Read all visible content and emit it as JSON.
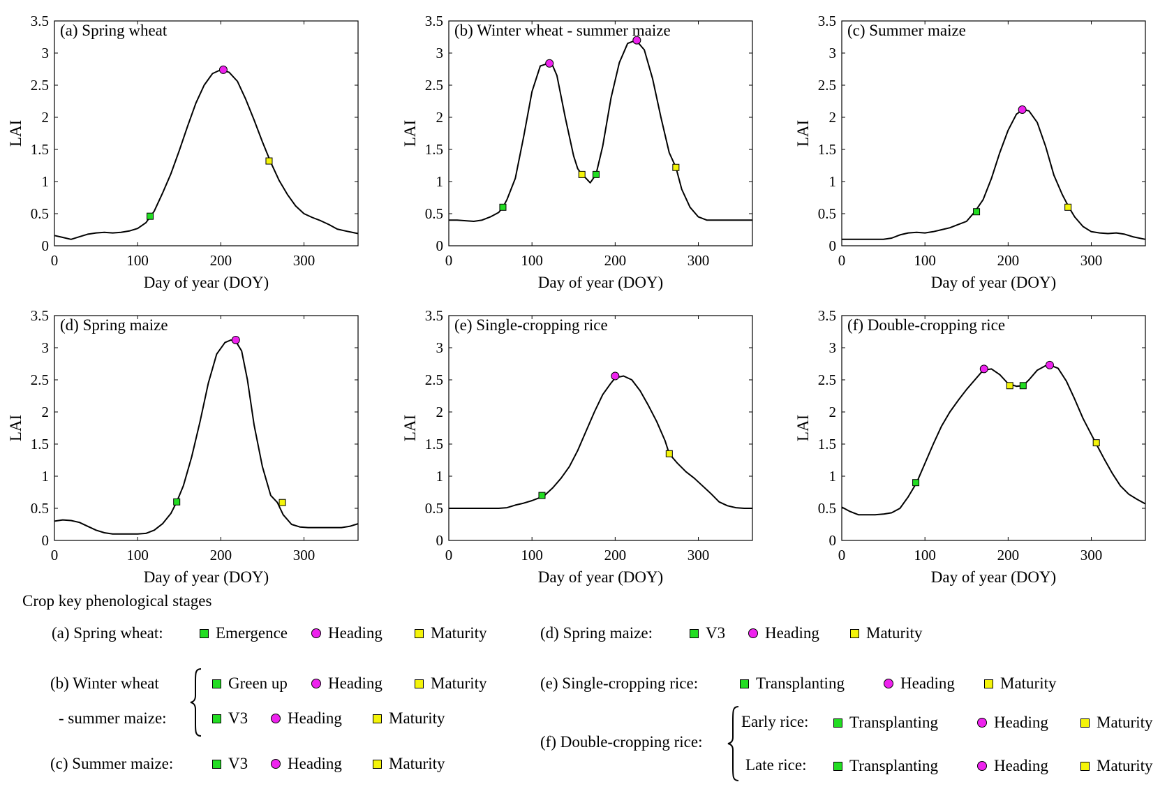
{
  "colors": {
    "emergence": "#22dd22",
    "heading": "#ee22ee",
    "maturity": "#f4f40a",
    "line": "#000000"
  },
  "chart_data": [
    {
      "type": "line",
      "panel_title": "(a) Spring wheat",
      "xlabel": "Day of year (DOY)",
      "ylabel": "LAI",
      "xlim": [
        0,
        365
      ],
      "ylim": [
        0,
        3.5
      ],
      "xticks": [
        "0",
        "100",
        "200",
        "300"
      ],
      "yticks": [
        "0",
        "0.5",
        "1",
        "1.5",
        "2",
        "2.5",
        "3",
        "3.5"
      ],
      "x": [
        0,
        10,
        20,
        30,
        40,
        50,
        60,
        70,
        80,
        90,
        100,
        110,
        120,
        130,
        140,
        150,
        160,
        170,
        180,
        190,
        200,
        210,
        220,
        230,
        240,
        250,
        260,
        270,
        280,
        290,
        300,
        310,
        320,
        330,
        340,
        350,
        365
      ],
      "y": [
        0.16,
        0.13,
        0.1,
        0.14,
        0.18,
        0.2,
        0.21,
        0.2,
        0.21,
        0.23,
        0.27,
        0.36,
        0.54,
        0.82,
        1.12,
        1.48,
        1.86,
        2.22,
        2.5,
        2.68,
        2.74,
        2.7,
        2.56,
        2.28,
        1.96,
        1.62,
        1.3,
        1.02,
        0.8,
        0.62,
        0.5,
        0.44,
        0.39,
        0.33,
        0.26,
        0.23,
        0.19
      ],
      "markers": [
        {
          "stage": "Emergence",
          "x": 115,
          "y": 0.46,
          "shape": "square"
        },
        {
          "stage": "Heading",
          "x": 203,
          "y": 2.74,
          "shape": "circle"
        },
        {
          "stage": "Maturity",
          "x": 258,
          "y": 1.32,
          "shape": "square"
        }
      ]
    },
    {
      "type": "line",
      "panel_title": "(b) Winter  wheat - summer maize",
      "xlabel": "Day of year (DOY)",
      "ylabel": "LAI",
      "xlim": [
        0,
        365
      ],
      "ylim": [
        0,
        3.5
      ],
      "xticks": [
        "0",
        "100",
        "200",
        "300"
      ],
      "yticks": [
        "0",
        "0.5",
        "1",
        "1.5",
        "2",
        "2.5",
        "3",
        "3.5"
      ],
      "x": [
        0,
        10,
        20,
        30,
        40,
        50,
        60,
        65,
        70,
        80,
        90,
        100,
        110,
        120,
        125,
        130,
        140,
        150,
        155,
        160,
        165,
        170,
        177,
        185,
        195,
        205,
        215,
        225,
        235,
        245,
        255,
        265,
        273,
        280,
        290,
        300,
        310,
        320,
        330,
        340,
        350,
        365
      ],
      "y": [
        0.4,
        0.4,
        0.39,
        0.38,
        0.4,
        0.45,
        0.52,
        0.6,
        0.72,
        1.05,
        1.7,
        2.4,
        2.8,
        2.84,
        2.8,
        2.65,
        2.0,
        1.4,
        1.2,
        1.11,
        1.05,
        0.98,
        1.11,
        1.55,
        2.3,
        2.85,
        3.15,
        3.2,
        3.05,
        2.6,
        2.0,
        1.45,
        1.22,
        0.88,
        0.6,
        0.45,
        0.4,
        0.4,
        0.4,
        0.4,
        0.4,
        0.4
      ],
      "markers": [
        {
          "stage": "Green up",
          "x": 65,
          "y": 0.6,
          "shape": "square"
        },
        {
          "stage": "Heading",
          "x": 121,
          "y": 2.84,
          "shape": "circle"
        },
        {
          "stage": "Maturity",
          "x": 160,
          "y": 1.11,
          "shape": "square"
        },
        {
          "stage": "V3",
          "x": 177,
          "y": 1.11,
          "shape": "square"
        },
        {
          "stage": "Heading",
          "x": 226,
          "y": 3.2,
          "shape": "circle"
        },
        {
          "stage": "Maturity",
          "x": 273,
          "y": 1.22,
          "shape": "square"
        }
      ]
    },
    {
      "type": "line",
      "panel_title": "(c) Summer maize",
      "xlabel": "Day of year (DOY)",
      "ylabel": "LAI",
      "xlim": [
        0,
        365
      ],
      "ylim": [
        0,
        3.5
      ],
      "xticks": [
        "0",
        "100",
        "200",
        "300"
      ],
      "yticks": [
        "0",
        "0.5",
        "1",
        "1.5",
        "2",
        "2.5",
        "3",
        "3.5"
      ],
      "x": [
        0,
        10,
        20,
        30,
        40,
        50,
        60,
        70,
        80,
        90,
        100,
        110,
        120,
        130,
        140,
        150,
        160,
        170,
        180,
        190,
        200,
        210,
        218,
        225,
        235,
        245,
        255,
        265,
        273,
        280,
        290,
        300,
        310,
        320,
        330,
        340,
        350,
        365
      ],
      "y": [
        0.1,
        0.1,
        0.1,
        0.1,
        0.1,
        0.1,
        0.12,
        0.17,
        0.2,
        0.21,
        0.2,
        0.22,
        0.25,
        0.28,
        0.33,
        0.38,
        0.53,
        0.72,
        1.05,
        1.45,
        1.8,
        2.05,
        2.12,
        2.1,
        1.92,
        1.55,
        1.1,
        0.8,
        0.6,
        0.45,
        0.3,
        0.22,
        0.2,
        0.19,
        0.2,
        0.18,
        0.14,
        0.1
      ],
      "markers": [
        {
          "stage": "V3",
          "x": 162,
          "y": 0.53,
          "shape": "square"
        },
        {
          "stage": "Heading",
          "x": 217,
          "y": 2.12,
          "shape": "circle"
        },
        {
          "stage": "Maturity",
          "x": 272,
          "y": 0.6,
          "shape": "square"
        }
      ]
    },
    {
      "type": "line",
      "panel_title": "(d) Spring maize",
      "xlabel": "Day of year (DOY)",
      "ylabel": "LAI",
      "xlim": [
        0,
        365
      ],
      "ylim": [
        0,
        3.5
      ],
      "xticks": [
        "0",
        "100",
        "200",
        "300"
      ],
      "yticks": [
        "0",
        "0.5",
        "1",
        "1.5",
        "2",
        "2.5",
        "3",
        "3.5"
      ],
      "x": [
        0,
        10,
        20,
        30,
        40,
        50,
        60,
        70,
        80,
        90,
        100,
        110,
        120,
        130,
        140,
        147,
        155,
        165,
        175,
        185,
        195,
        205,
        212,
        218,
        225,
        232,
        240,
        250,
        260,
        268,
        275,
        285,
        295,
        305,
        315,
        325,
        335,
        345,
        355,
        365
      ],
      "y": [
        0.3,
        0.32,
        0.31,
        0.28,
        0.22,
        0.16,
        0.12,
        0.1,
        0.1,
        0.1,
        0.1,
        0.11,
        0.16,
        0.26,
        0.42,
        0.6,
        0.85,
        1.3,
        1.85,
        2.45,
        2.9,
        3.08,
        3.12,
        3.1,
        2.95,
        2.5,
        1.8,
        1.15,
        0.7,
        0.59,
        0.4,
        0.25,
        0.21,
        0.2,
        0.2,
        0.2,
        0.2,
        0.2,
        0.22,
        0.26
      ],
      "markers": [
        {
          "stage": "V3",
          "x": 147,
          "y": 0.6,
          "shape": "square"
        },
        {
          "stage": "Heading",
          "x": 218,
          "y": 3.12,
          "shape": "circle"
        },
        {
          "stage": "Maturity",
          "x": 274,
          "y": 0.59,
          "shape": "square"
        }
      ]
    },
    {
      "type": "line",
      "panel_title": "(e) Single-cropping rice",
      "xlabel": "Day of year (DOY)",
      "ylabel": "LAI",
      "xlim": [
        0,
        365
      ],
      "ylim": [
        0,
        3.5
      ],
      "xticks": [
        "0",
        "100",
        "200",
        "300"
      ],
      "yticks": [
        "0",
        "0.5",
        "1",
        "1.5",
        "2",
        "2.5",
        "3",
        "3.5"
      ],
      "x": [
        0,
        10,
        20,
        30,
        40,
        50,
        60,
        70,
        80,
        90,
        100,
        110,
        115,
        125,
        135,
        145,
        155,
        165,
        175,
        185,
        195,
        200,
        210,
        220,
        230,
        240,
        250,
        260,
        265,
        275,
        285,
        295,
        305,
        315,
        325,
        335,
        345,
        355,
        365
      ],
      "y": [
        0.5,
        0.5,
        0.5,
        0.5,
        0.5,
        0.5,
        0.5,
        0.51,
        0.55,
        0.58,
        0.62,
        0.67,
        0.7,
        0.82,
        0.97,
        1.15,
        1.4,
        1.7,
        2.0,
        2.27,
        2.45,
        2.53,
        2.56,
        2.5,
        2.33,
        2.1,
        1.85,
        1.55,
        1.35,
        1.2,
        1.07,
        0.97,
        0.85,
        0.73,
        0.6,
        0.54,
        0.51,
        0.5,
        0.5
      ],
      "markers": [
        {
          "stage": "Transplanting",
          "x": 112,
          "y": 0.7,
          "shape": "square"
        },
        {
          "stage": "Heading",
          "x": 200,
          "y": 2.56,
          "shape": "circle"
        },
        {
          "stage": "Maturity",
          "x": 265,
          "y": 1.35,
          "shape": "square"
        }
      ]
    },
    {
      "type": "line",
      "panel_title": "(f) Double-cropping rice",
      "xlabel": "Day of year (DOY)",
      "ylabel": "LAI",
      "xlim": [
        0,
        365
      ],
      "ylim": [
        0,
        3.5
      ],
      "xticks": [
        "0",
        "100",
        "200",
        "300"
      ],
      "yticks": [
        "0",
        "0.5",
        "1",
        "1.5",
        "2",
        "2.5",
        "3",
        "3.5"
      ],
      "x": [
        0,
        10,
        20,
        30,
        40,
        50,
        60,
        70,
        80,
        90,
        100,
        110,
        120,
        130,
        140,
        150,
        160,
        170,
        180,
        190,
        200,
        210,
        218,
        225,
        235,
        245,
        250,
        260,
        270,
        280,
        290,
        300,
        306,
        315,
        325,
        335,
        345,
        355,
        365
      ],
      "y": [
        0.52,
        0.45,
        0.4,
        0.4,
        0.4,
        0.41,
        0.43,
        0.5,
        0.68,
        0.9,
        1.2,
        1.5,
        1.78,
        2.0,
        2.18,
        2.35,
        2.5,
        2.65,
        2.67,
        2.58,
        2.44,
        2.4,
        2.41,
        2.5,
        2.65,
        2.72,
        2.73,
        2.68,
        2.48,
        2.2,
        1.9,
        1.65,
        1.5,
        1.28,
        1.05,
        0.85,
        0.72,
        0.64,
        0.57
      ],
      "markers": [
        {
          "stage": "Transplanting",
          "x": 89,
          "y": 0.9,
          "shape": "square"
        },
        {
          "stage": "Heading",
          "x": 171,
          "y": 2.67,
          "shape": "circle"
        },
        {
          "stage": "Maturity",
          "x": 202,
          "y": 2.41,
          "shape": "square"
        },
        {
          "stage": "Transplanting",
          "x": 218,
          "y": 2.41,
          "shape": "square"
        },
        {
          "stage": "Heading",
          "x": 250,
          "y": 2.73,
          "shape": "circle"
        },
        {
          "stage": "Maturity",
          "x": 306,
          "y": 1.52,
          "shape": "square"
        }
      ]
    }
  ],
  "legend": {
    "title": "Crop key phenological stages",
    "spring_wheat": {
      "label": "(a) Spring wheat:",
      "s1": "Emergence",
      "s2": "Heading",
      "s3": "Maturity"
    },
    "winter_wheat": {
      "label": "(b) Winter wheat",
      "s1": "Green up",
      "s2": "Heading",
      "s3": "Maturity"
    },
    "summer_maize_b": {
      "label": "-  summer maize:",
      "s1": "V3",
      "s2": "Heading",
      "s3": "Maturity"
    },
    "summer_maize": {
      "label": "(c) Summer maize:",
      "s1": "V3",
      "s2": "Heading",
      "s3": "Maturity"
    },
    "spring_maize": {
      "label": "(d) Spring maize:",
      "s1": "V3",
      "s2": "Heading",
      "s3": "Maturity"
    },
    "single_rice": {
      "label": "(e) Single-cropping rice:",
      "s1": "Transplanting",
      "s2": "Heading",
      "s3": "Maturity"
    },
    "double_rice": {
      "label": "(f) Double-cropping rice:"
    },
    "early_rice": {
      "label": "Early rice:",
      "s1": "Transplanting",
      "s2": "Heading",
      "s3": "Maturity"
    },
    "late_rice": {
      "label": "Late rice:",
      "s1": "Transplanting",
      "s2": "Heading",
      "s3": "Maturity"
    }
  }
}
